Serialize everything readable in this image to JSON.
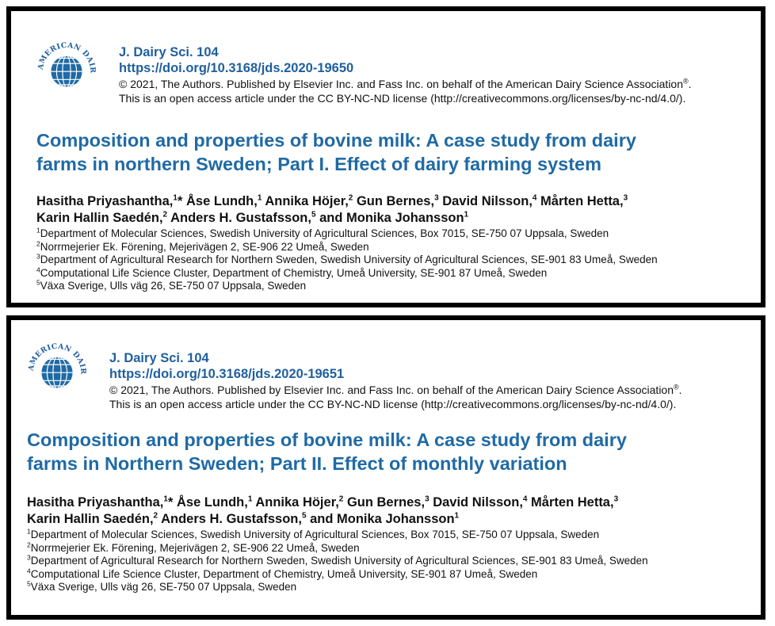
{
  "articles": [
    {
      "journal": "J. Dairy Sci. 104",
      "doi": "https://doi.org/10.3168/jds.2020-19650",
      "copyright_line_1": "© 2021, The Authors. Published by Elsevier Inc. and Fass Inc. on behalf of the American Dairy Science Association",
      "copyright_mark": "®",
      "copyright_end": ".",
      "copyright_line_2": "This is an open access article under the CC BY-NC-ND license (http://creativecommons.org/licenses/by-nc-nd/4.0/).",
      "title_line_1": "Composition and properties of bovine milk: A case study from dairy",
      "title_line_2": "farms in northern Sweden; Part I. Effect of dairy farming system"
    },
    {
      "journal": "J. Dairy Sci. 104",
      "doi": "https://doi.org/10.3168/jds.2020-19651",
      "copyright_line_1": "© 2021, The Authors. Published by Elsevier Inc. and Fass Inc. on behalf of the American Dairy Science Association",
      "copyright_mark": "®",
      "copyright_end": ".",
      "copyright_line_2": "This is an open access article under the CC BY-NC-ND license (http://creativecommons.org/licenses/by-nc-nd/4.0/).",
      "title_line_1": "Composition and properties of bovine milk: A case study from dairy",
      "title_line_2": "farms in Northern Sweden; Part II. Effect of monthly variation"
    }
  ],
  "authors": {
    "a1": "Hasitha Priyashantha,",
    "a1_sup": "1",
    "a1_star": "*",
    "a2": " Åse Lundh,",
    "a2_sup": "1",
    "a3": " Annika Höjer,",
    "a3_sup": "2",
    "a4": " Gun Bernes,",
    "a4_sup": "3",
    "a5": " David Nilsson,",
    "a5_sup": "4",
    "a6": " Mårten Hetta,",
    "a6_sup": "3",
    "a7": "Karin Hallin Saedén,",
    "a7_sup": "2",
    "a8": " Anders H. Gustafsson,",
    "a8_sup": "5",
    "a9": " and Monika Johansson",
    "a9_sup": "1"
  },
  "affiliations": [
    {
      "sup": "1",
      "text": "Department of Molecular Sciences, Swedish University of Agricultural Sciences, Box 7015, SE-750 07 Uppsala, Sweden"
    },
    {
      "sup": "2",
      "text": "Norrmejerier Ek. Förening, Mejerivägen 2, SE-906 22 Umeå, Sweden"
    },
    {
      "sup": "3",
      "text": "Department of Agricultural Research for Northern Sweden, Swedish University of Agricultural Sciences, SE-901 83 Umeå, Sweden"
    },
    {
      "sup": "4",
      "text": "Computational Life Science Cluster, Department of Chemistry, Umeå University, SE-901 87 Umeå, Sweden"
    },
    {
      "sup": "5",
      "text": "Växa Sverige, Ulls väg 26, SE-750 07 Uppsala, Sweden"
    }
  ],
  "logo_text": "AMERICAN DAIRY SCIENCE ASSOCIATION",
  "colors": {
    "brand_blue": "#1f6aa5",
    "link_blue": "#1f5f9e"
  }
}
